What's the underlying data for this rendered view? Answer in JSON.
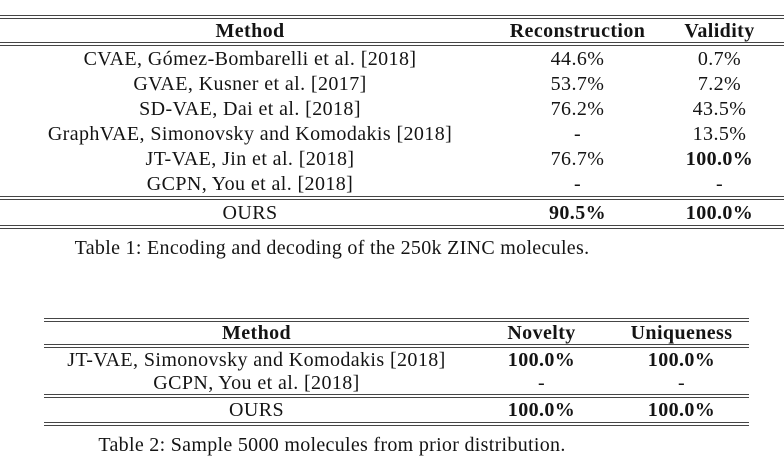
{
  "table1": {
    "columns": [
      "Method",
      "Reconstruction",
      "Validity"
    ],
    "rows": [
      [
        "CVAE, Gómez-Bombarelli et al. [2018]",
        "44.6%",
        "0.7%"
      ],
      [
        "GVAE, Kusner et al. [2017]",
        "53.7%",
        "7.2%"
      ],
      [
        "SD-VAE, Dai et al. [2018]",
        "76.2%",
        "43.5%"
      ],
      [
        "GraphVAE, Simonovsky and Komodakis [2018]",
        "-",
        "13.5%"
      ],
      [
        "JT-VAE, Jin et al. [2018]",
        "76.7%",
        "100.0%"
      ],
      [
        "GCPN, You et al. [2018]",
        "-",
        "-"
      ]
    ],
    "footer": [
      "OURS",
      "90.5%",
      "100.0%"
    ],
    "caption": "Table 1: Encoding and decoding of the 250k ZINC molecules."
  },
  "table2": {
    "columns": [
      "Method",
      "Novelty",
      "Uniqueness"
    ],
    "rows": [
      [
        "JT-VAE, Simonovsky and Komodakis [2018]",
        "100.0%",
        "100.0%"
      ],
      [
        "GCPN, You et al. [2018]",
        "-",
        "-"
      ]
    ],
    "footer": [
      "OURS",
      "100.0%",
      "100.0%"
    ],
    "caption": "Table 2: Sample 5000 molecules from prior distribution."
  },
  "colors": {
    "rule": "#454545",
    "text": "#141414",
    "background": "#ffffff"
  }
}
